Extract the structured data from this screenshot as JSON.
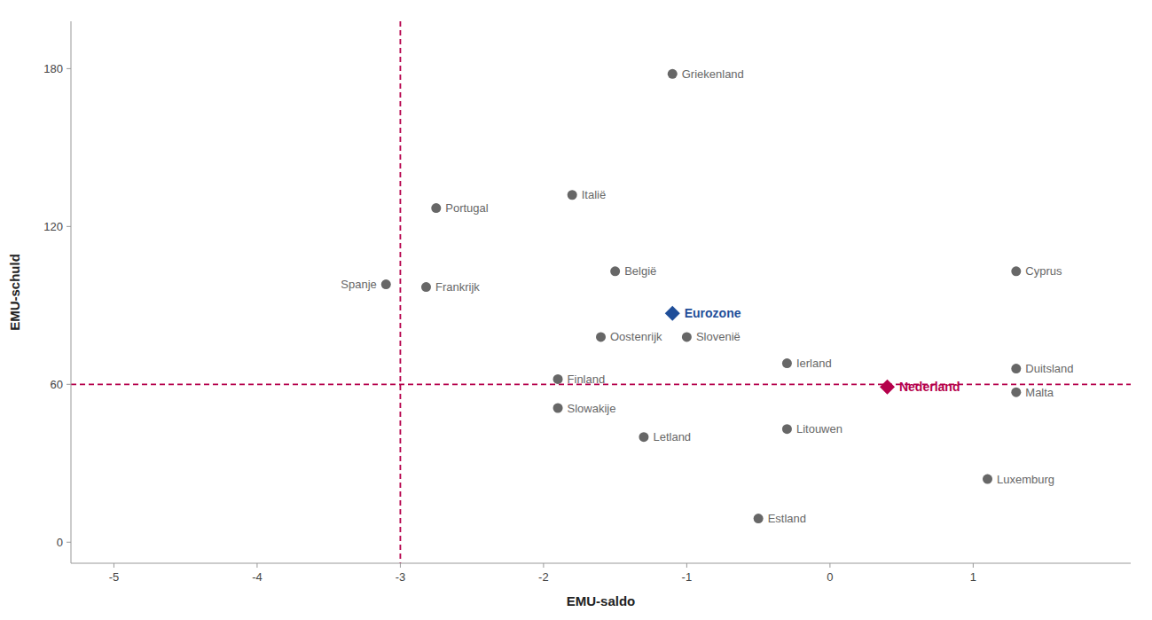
{
  "chart_data": {
    "type": "scatter",
    "xlabel": "EMU-saldo",
    "ylabel": "EMU-schuld",
    "xlim": [
      -5.3,
      2.1
    ],
    "ylim": [
      -8,
      198
    ],
    "xticks": [
      -5,
      -4,
      -3,
      -2,
      -1,
      0,
      1
    ],
    "yticks": [
      0,
      60,
      120,
      180
    ],
    "grid": false,
    "reference_lines": {
      "x": -3.0,
      "y": 60,
      "color": "#b5004b",
      "line_style": "dashed"
    },
    "series": [
      {
        "color": "#676767",
        "marker": "circle",
        "labels": [
          "Griekenland",
          "Portugal",
          "Italië",
          "België",
          "Spanje",
          "Frankrijk",
          "Oostenrijk",
          "Slovenië",
          "Ierland",
          "Cyprus",
          "Finland",
          "Duitsland",
          "Malta",
          "Slowakije",
          "Letland",
          "Litouwen",
          "Luxemburg",
          "Estland"
        ],
        "x": [
          -1.1,
          -2.75,
          -1.8,
          -1.5,
          -3.1,
          -2.82,
          -1.6,
          -1.0,
          -0.3,
          1.3,
          -1.9,
          1.3,
          1.3,
          -1.9,
          -1.3,
          -0.3,
          1.1,
          -0.5
        ],
        "values": [
          178,
          127,
          132,
          103,
          98,
          97,
          78,
          78,
          68,
          103,
          62,
          66,
          57,
          51,
          40,
          43,
          24,
          9
        ]
      },
      {
        "color": "#1f4e99",
        "marker": "diamond",
        "labels": [
          "Eurozone"
        ],
        "x": [
          -1.1
        ],
        "values": [
          87
        ]
      },
      {
        "color": "#b5004b",
        "marker": "diamond",
        "labels": [
          "Nederland"
        ],
        "x": [
          0.4
        ],
        "values": [
          59
        ]
      }
    ]
  }
}
